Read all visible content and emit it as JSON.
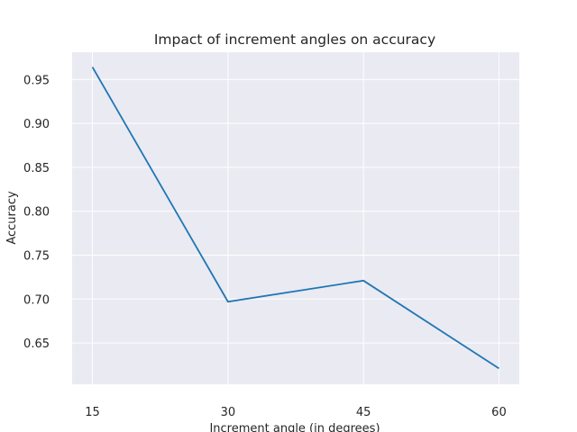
{
  "chart_data": {
    "type": "line",
    "title": "Impact of increment angles on accuracy",
    "xlabel": "Increment angle (in degrees)",
    "ylabel": "Accuracy",
    "x": [
      15,
      30,
      45,
      60
    ],
    "xticks": [
      "15",
      "30",
      "45",
      "60"
    ],
    "yticks": [
      "0.65",
      "0.70",
      "0.75",
      "0.80",
      "0.85",
      "0.90",
      "0.95"
    ],
    "xlim": [
      12.75,
      62.25
    ],
    "ylim": [
      0.603,
      0.981
    ],
    "grid": true,
    "series": [
      {
        "values": [
          0.964,
          0.697,
          0.721,
          0.621
        ]
      }
    ],
    "colors": {
      "background": "#eaeaf2",
      "grid": "#ffffff",
      "line": "#1f77b4"
    }
  }
}
